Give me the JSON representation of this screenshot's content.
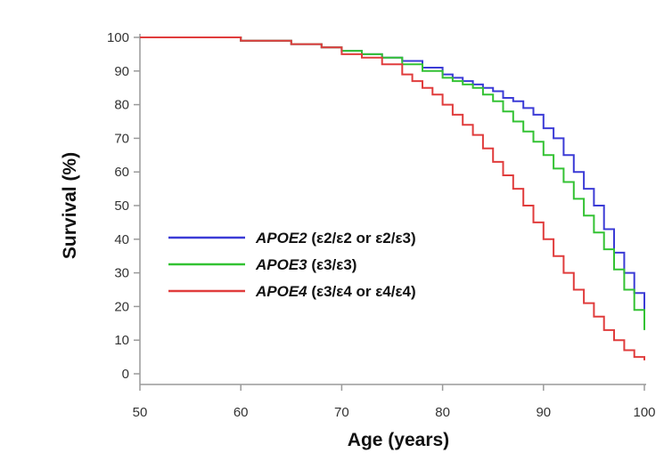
{
  "chart_data": {
    "type": "line",
    "step": true,
    "xlabel": "Age (years)",
    "ylabel": "Survival (%)",
    "xlim": [
      50,
      100
    ],
    "ylim": [
      0,
      100
    ],
    "xticks": [
      50,
      60,
      70,
      80,
      90,
      100
    ],
    "yticks": [
      0,
      10,
      20,
      30,
      40,
      50,
      60,
      70,
      80,
      90,
      100
    ],
    "grid": false,
    "legend_position": "center-left",
    "series": [
      {
        "gene": "APOE2",
        "genotype": "(ε2/ε2 or ε2/ε3)",
        "color": "#3b3bd6",
        "x": [
          50,
          55,
          60,
          65,
          68,
          70,
          72,
          74,
          76,
          78,
          80,
          81,
          82,
          83,
          84,
          85,
          86,
          87,
          88,
          89,
          90,
          91,
          92,
          93,
          94,
          95,
          96,
          97,
          98,
          99,
          100
        ],
        "y": [
          100,
          100,
          99,
          98,
          97,
          96,
          95,
          94,
          93,
          91,
          89,
          88,
          87,
          86,
          85,
          84,
          82,
          81,
          79,
          77,
          73,
          70,
          65,
          60,
          55,
          50,
          43,
          36,
          30,
          24,
          17
        ]
      },
      {
        "gene": "APOE3",
        "genotype": "(ε3/ε3)",
        "color": "#33c233",
        "x": [
          50,
          55,
          60,
          65,
          68,
          70,
          72,
          74,
          76,
          78,
          80,
          81,
          82,
          83,
          84,
          85,
          86,
          87,
          88,
          89,
          90,
          91,
          92,
          93,
          94,
          95,
          96,
          97,
          98,
          99,
          100
        ],
        "y": [
          100,
          100,
          99,
          98,
          97,
          96,
          95,
          94,
          92,
          90,
          88,
          87,
          86,
          85,
          83,
          81,
          78,
          75,
          72,
          69,
          65,
          61,
          57,
          52,
          47,
          42,
          37,
          31,
          25,
          19,
          13
        ]
      },
      {
        "gene": "APOE4",
        "genotype": "(ε3/ε4 or ε4/ε4)",
        "color": "#e03c3c",
        "x": [
          50,
          55,
          60,
          65,
          68,
          70,
          72,
          74,
          76,
          77,
          78,
          79,
          80,
          81,
          82,
          83,
          84,
          85,
          86,
          87,
          88,
          89,
          90,
          91,
          92,
          93,
          94,
          95,
          96,
          97,
          98,
          99,
          100
        ],
        "y": [
          100,
          100,
          99,
          98,
          97,
          95,
          94,
          92,
          89,
          87,
          85,
          83,
          80,
          77,
          74,
          71,
          67,
          63,
          59,
          55,
          50,
          45,
          40,
          35,
          30,
          25,
          21,
          17,
          13,
          10,
          7,
          5,
          4
        ]
      }
    ]
  }
}
